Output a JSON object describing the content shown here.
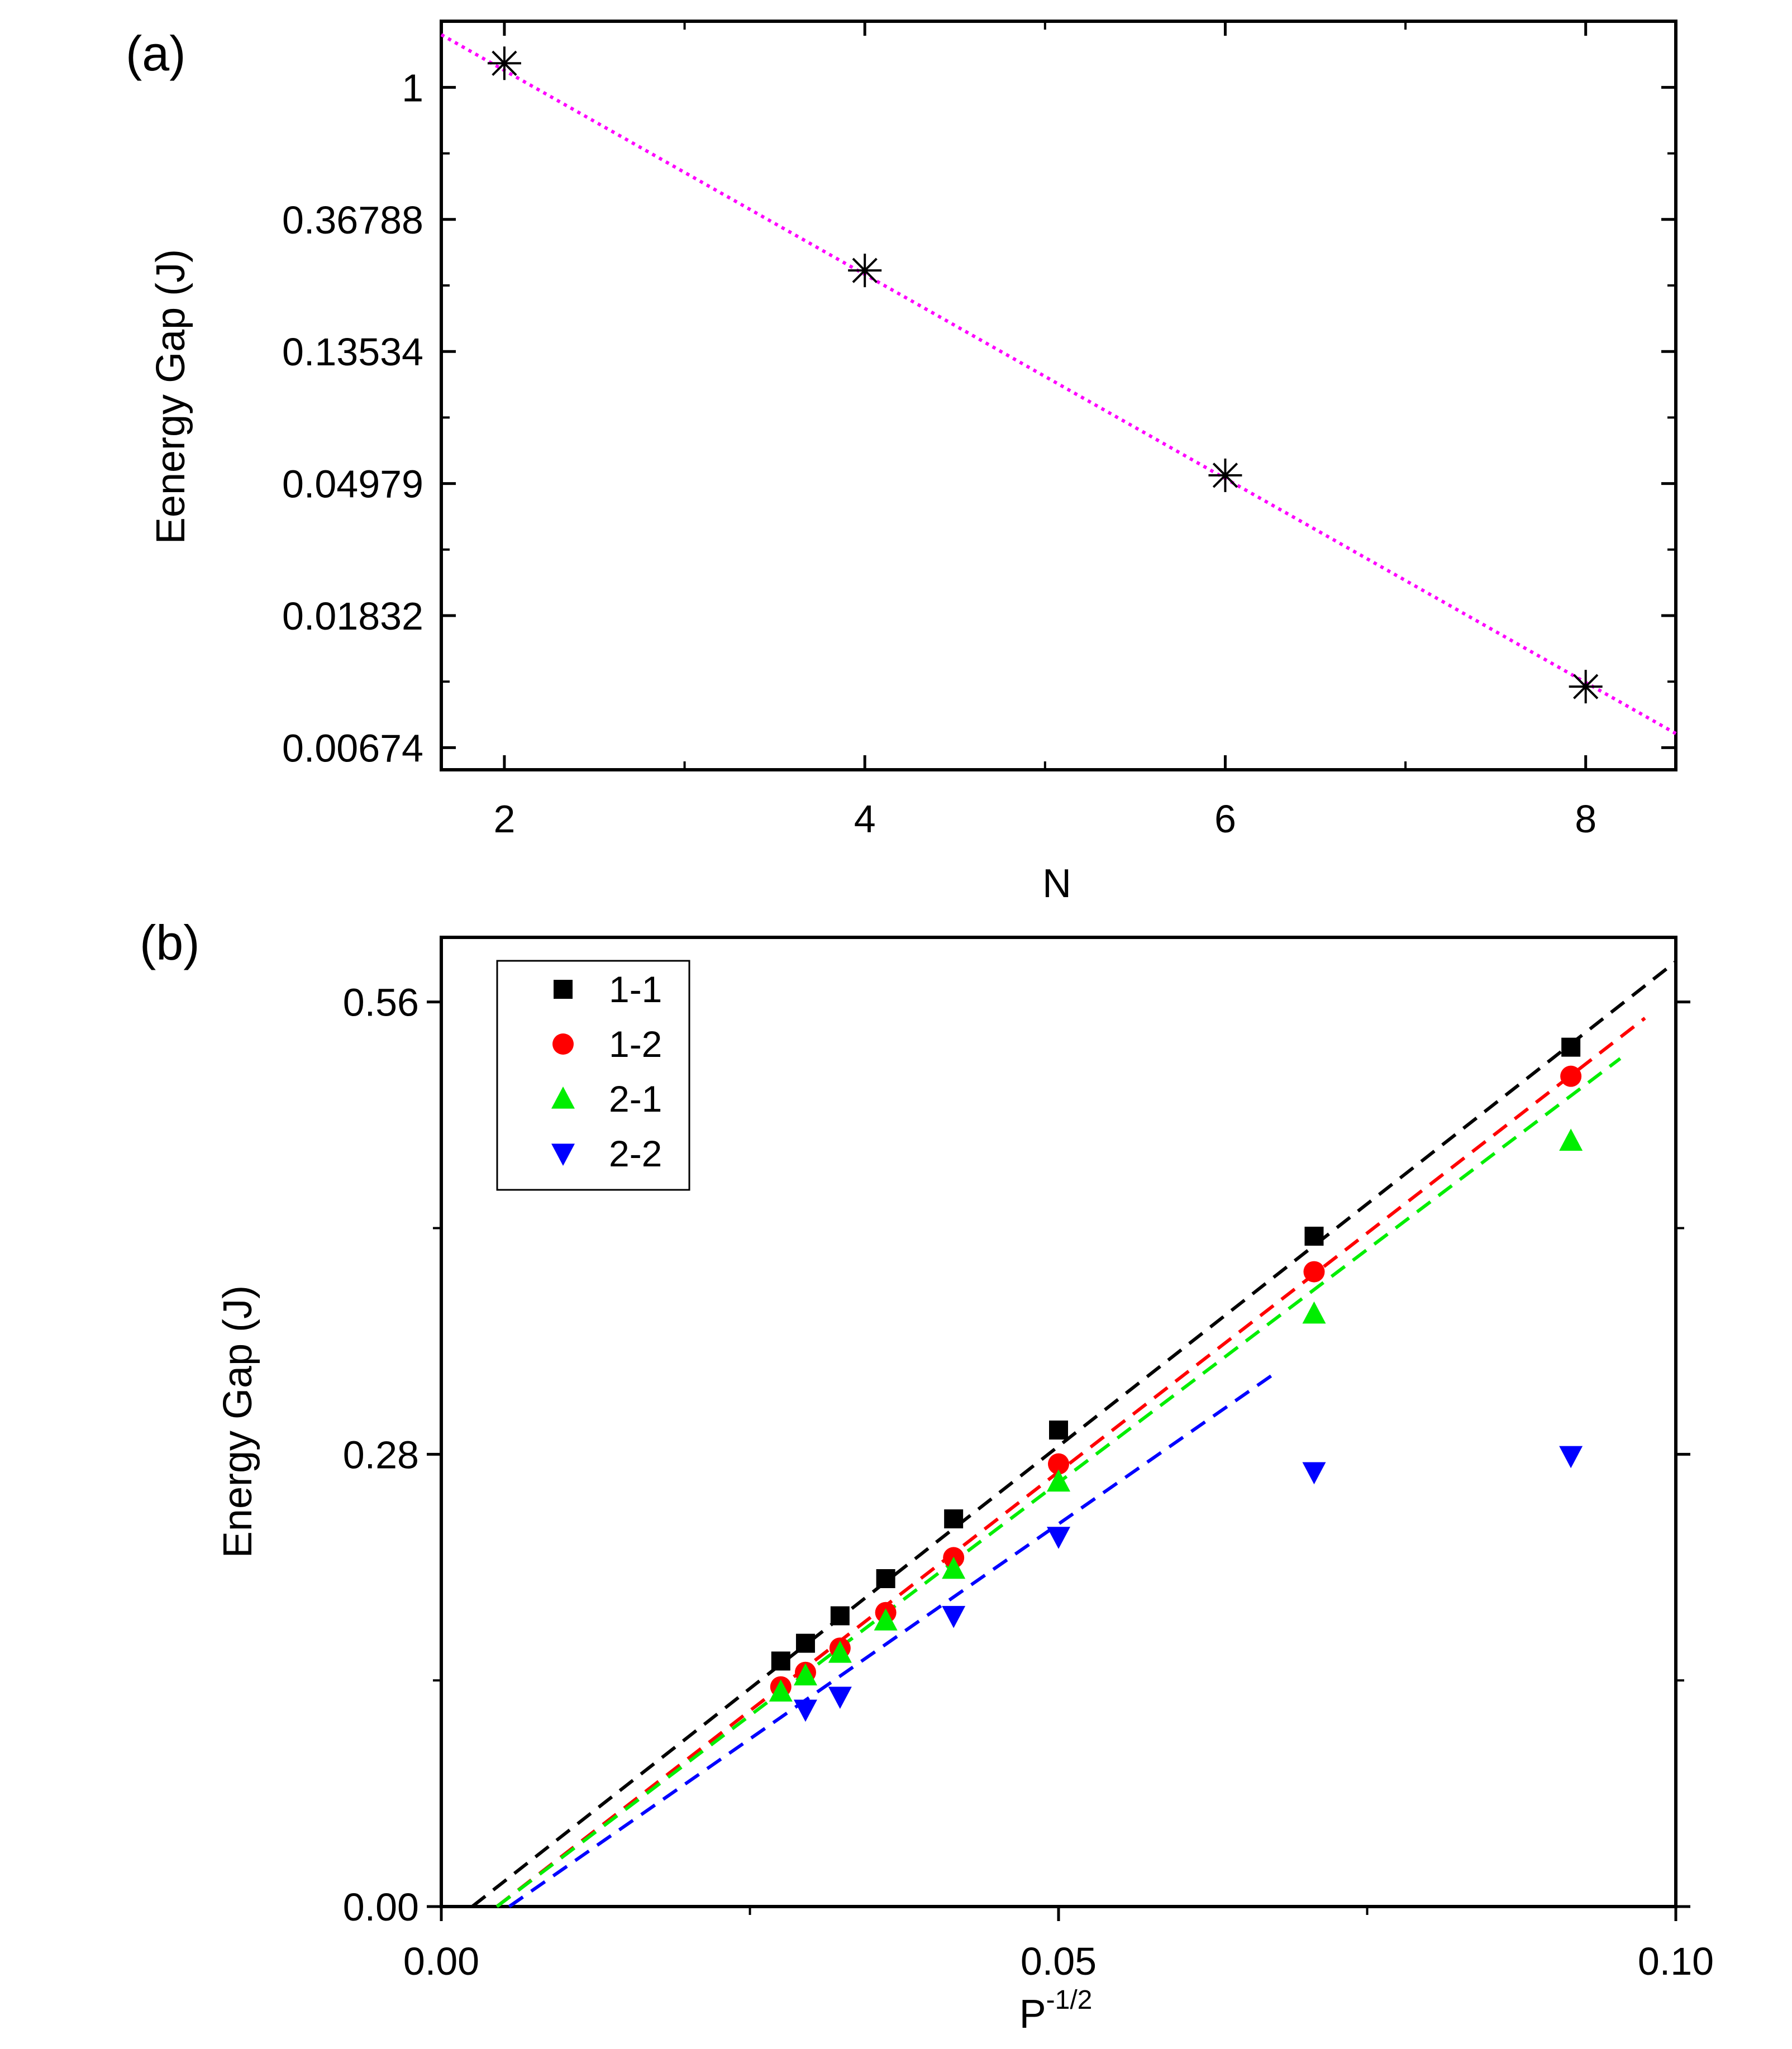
{
  "colors": {
    "axis": "#000000",
    "fit_a": "#ff00ff",
    "s11": "#000000",
    "s12": "#ff0000",
    "s21": "#00ee00",
    "s22": "#0000ff"
  },
  "chart_data": [
    {
      "panel_label": "(a)",
      "type": "scatter",
      "xlabel": "N",
      "ylabel": "Eenergy Gap (J)",
      "yscale": "log",
      "xlim": [
        1.65,
        8.5
      ],
      "ylim": [
        0.0057,
        1.65
      ],
      "x_ticks": [
        2,
        4,
        6,
        8
      ],
      "x_tick_labels": [
        "2",
        "4",
        "6",
        "8"
      ],
      "y_ticks": [
        1,
        0.36788,
        0.13534,
        0.04979,
        0.01832,
        0.00674
      ],
      "y_tick_labels": [
        "1",
        "0.36788",
        "0.13534",
        "0.04979",
        "0.01832",
        "0.00674"
      ],
      "marker": "asterisk",
      "points": [
        {
          "x": 2,
          "y": 1.2
        },
        {
          "x": 4,
          "y": 0.25
        },
        {
          "x": 6,
          "y": 0.053
        },
        {
          "x": 8,
          "y": 0.0107
        }
      ],
      "fit_line": {
        "style": "dotted",
        "x": [
          1.65,
          8.5
        ],
        "y": [
          1.49,
          0.0075
        ]
      }
    },
    {
      "panel_label": "(b)",
      "type": "scatter",
      "xlabel_base": "P",
      "xlabel_sup": "-1/2",
      "ylabel": "Energy Gap (J)",
      "xlim": [
        0,
        0.1
      ],
      "ylim": [
        0,
        0.6
      ],
      "x_ticks": [
        0,
        0.05,
        0.1
      ],
      "x_tick_labels": [
        "0.00",
        "0.05",
        "0.10"
      ],
      "y_ticks": [
        0,
        0.28,
        0.56
      ],
      "y_tick_labels": [
        "0.00",
        "0.28",
        "0.56"
      ],
      "legend_position": "top-left",
      "series": [
        {
          "name": "1-1",
          "marker": "square",
          "color_key": "s11",
          "x": [
            0.0275,
            0.0295,
            0.0323,
            0.036,
            0.0415,
            0.05,
            0.0707,
            0.0915
          ],
          "y": [
            0.152,
            0.163,
            0.18,
            0.203,
            0.24,
            0.295,
            0.415,
            0.532
          ],
          "fit": {
            "x": [
              0.0025,
              0.1
            ],
            "y": [
              0.0,
              0.585
            ]
          }
        },
        {
          "name": "1-2",
          "marker": "circle",
          "color_key": "s12",
          "x": [
            0.0275,
            0.0295,
            0.0323,
            0.036,
            0.0415,
            0.05,
            0.0707,
            0.0915
          ],
          "y": [
            0.136,
            0.145,
            0.16,
            0.182,
            0.216,
            0.274,
            0.393,
            0.514
          ],
          "fit": {
            "x": [
              0.0045,
              0.0975
            ],
            "y": [
              0.0,
              0.55
            ]
          }
        },
        {
          "name": "2-1",
          "marker": "triangle-up",
          "color_key": "s21",
          "x": [
            0.0275,
            0.0295,
            0.0323,
            0.036,
            0.0415,
            0.05,
            0.0707,
            0.0915
          ],
          "y": [
            0.133,
            0.143,
            0.157,
            0.177,
            0.209,
            0.263,
            0.367,
            0.474
          ],
          "fit": {
            "x": [
              0.0045,
              0.0955
            ],
            "y": [
              0.0,
              0.525
            ]
          }
        },
        {
          "name": "2-2",
          "marker": "triangle-down",
          "color_key": "s22",
          "x": [
            0.0295,
            0.0323,
            0.0415,
            0.05,
            0.0707,
            0.0915
          ],
          "y": [
            0.122,
            0.13,
            0.18,
            0.229,
            0.269,
            0.279
          ],
          "fit": {
            "x": [
              0.0055,
              0.0675
            ],
            "y": [
              0.0,
              0.33
            ]
          }
        }
      ]
    }
  ]
}
